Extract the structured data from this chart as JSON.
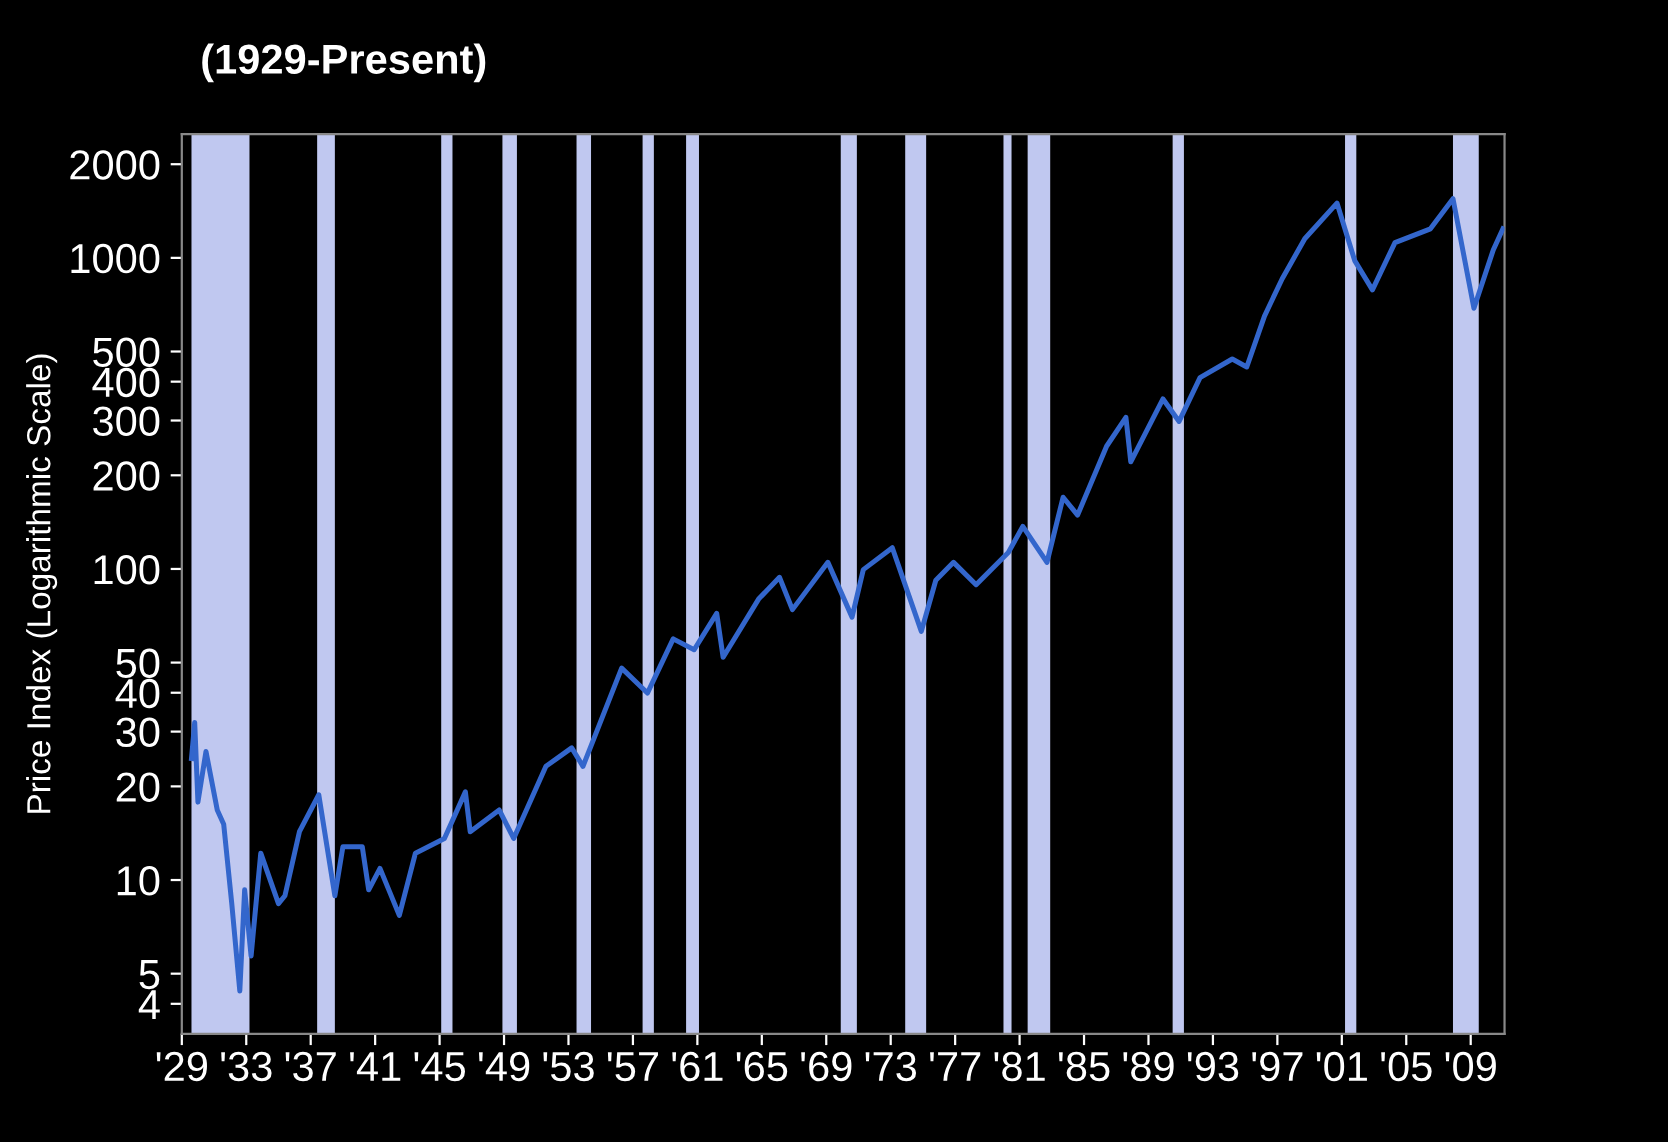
{
  "chart_data": {
    "type": "line",
    "title": "(1929-Present)",
    "ylabel": "Price Index (Logarithmic Scale)",
    "log": "y",
    "grid": false,
    "legend": false,
    "marker": "none",
    "line_style": "solid",
    "xlim": [
      1929.0,
      2011.1
    ],
    "ylim": [
      3.2,
      2500
    ],
    "xticks": [
      {
        "value": 1929,
        "label": "'29"
      },
      {
        "value": 1933,
        "label": "'33"
      },
      {
        "value": 1937,
        "label": "'37"
      },
      {
        "value": 1941,
        "label": "'41"
      },
      {
        "value": 1945,
        "label": "'45"
      },
      {
        "value": 1949,
        "label": "'49"
      },
      {
        "value": 1953,
        "label": "'53"
      },
      {
        "value": 1957,
        "label": "'57"
      },
      {
        "value": 1961,
        "label": "'61"
      },
      {
        "value": 1965,
        "label": "'65"
      },
      {
        "value": 1969,
        "label": "'69"
      },
      {
        "value": 1973,
        "label": "'73"
      },
      {
        "value": 1977,
        "label": "'77"
      },
      {
        "value": 1981,
        "label": "'81"
      },
      {
        "value": 1985,
        "label": "'85"
      },
      {
        "value": 1989,
        "label": "'89"
      },
      {
        "value": 1993,
        "label": "'93"
      },
      {
        "value": 1997,
        "label": "'97"
      },
      {
        "value": 2001,
        "label": "'01"
      },
      {
        "value": 2005,
        "label": "'05"
      },
      {
        "value": 2009,
        "label": "'09"
      }
    ],
    "yticks": [
      4,
      5,
      10,
      20,
      30,
      40,
      50,
      100,
      200,
      300,
      400,
      500,
      1000,
      2000
    ],
    "series": [
      {
        "color": "#3366cc",
        "x": [
          1929.6,
          1929.8,
          1930.0,
          1930.5,
          1931.2,
          1931.6,
          1932.1,
          1932.6,
          1932.9,
          1933.3,
          1933.9,
          1935.0,
          1935.4,
          1936.3,
          1937.5,
          1938.5,
          1939.0,
          1940.2,
          1940.6,
          1941.3,
          1942.5,
          1943.5,
          1945.3,
          1946.6,
          1946.9,
          1948.7,
          1949.6,
          1951.6,
          1953.2,
          1953.9,
          1956.3,
          1957.9,
          1959.5,
          1960.8,
          1962.2,
          1962.6,
          1964.8,
          1966.1,
          1966.9,
          1969.1,
          1970.6,
          1971.3,
          1973.1,
          1974.9,
          1975.8,
          1976.9,
          1978.3,
          1980.3,
          1981.2,
          1982.7,
          1983.7,
          1984.6,
          1986.4,
          1987.6,
          1987.9,
          1989.9,
          1990.9,
          1992.2,
          1994.2,
          1995.1,
          1996.2,
          1997.3,
          1998.7,
          2000.7,
          2001.8,
          2002.9,
          2004.3,
          2006.5,
          2007.9,
          2009.2,
          2010.4,
          2011.0
        ],
        "values": [
          24.6,
          32.1,
          17.8,
          25.9,
          16.8,
          15.1,
          8.4,
          4.4,
          9.3,
          5.7,
          12.2,
          8.4,
          8.9,
          14.3,
          18.8,
          8.9,
          12.8,
          12.8,
          9.3,
          10.9,
          7.7,
          12.2,
          13.6,
          19.2,
          14.3,
          16.8,
          13.6,
          23.2,
          26.6,
          23.2,
          48,
          39.9,
          59.6,
          55,
          72,
          52,
          80,
          94,
          74,
          105,
          70,
          99.5,
          117,
          63,
          92,
          105,
          89,
          113,
          137,
          105,
          170,
          149,
          248,
          307,
          221,
          352,
          298,
          412,
          473,
          446,
          650,
          857,
          1152,
          1500,
          980,
          789,
          1120,
          1240,
          1550,
          689,
          1060,
          1240
        ]
      }
    ],
    "bands": [
      {
        "axis": "x",
        "from": 1929.6,
        "to": 1933.2,
        "color": "#c0c8f0"
      },
      {
        "axis": "x",
        "from": 1937.4,
        "to": 1938.5,
        "color": "#c0c8f0"
      },
      {
        "axis": "x",
        "from": 1945.1,
        "to": 1945.8,
        "color": "#c0c8f0"
      },
      {
        "axis": "x",
        "from": 1948.9,
        "to": 1949.8,
        "color": "#c0c8f0"
      },
      {
        "axis": "x",
        "from": 1953.5,
        "to": 1954.4,
        "color": "#c0c8f0"
      },
      {
        "axis": "x",
        "from": 1957.6,
        "to": 1958.3,
        "color": "#c0c8f0"
      },
      {
        "axis": "x",
        "from": 1960.3,
        "to": 1961.1,
        "color": "#c0c8f0"
      },
      {
        "axis": "x",
        "from": 1969.9,
        "to": 1970.9,
        "color": "#c0c8f0"
      },
      {
        "axis": "x",
        "from": 1973.9,
        "to": 1975.2,
        "color": "#c0c8f0"
      },
      {
        "axis": "x",
        "from": 1980.0,
        "to": 1980.5,
        "color": "#c0c8f0"
      },
      {
        "axis": "x",
        "from": 1981.5,
        "to": 1982.9,
        "color": "#c0c8f0"
      },
      {
        "axis": "x",
        "from": 1990.5,
        "to": 1991.2,
        "color": "#c0c8f0"
      },
      {
        "axis": "x",
        "from": 2001.2,
        "to": 2001.9,
        "color": "#c0c8f0"
      },
      {
        "axis": "x",
        "from": 2007.9,
        "to": 2009.5,
        "color": "#c0c8f0"
      }
    ]
  }
}
